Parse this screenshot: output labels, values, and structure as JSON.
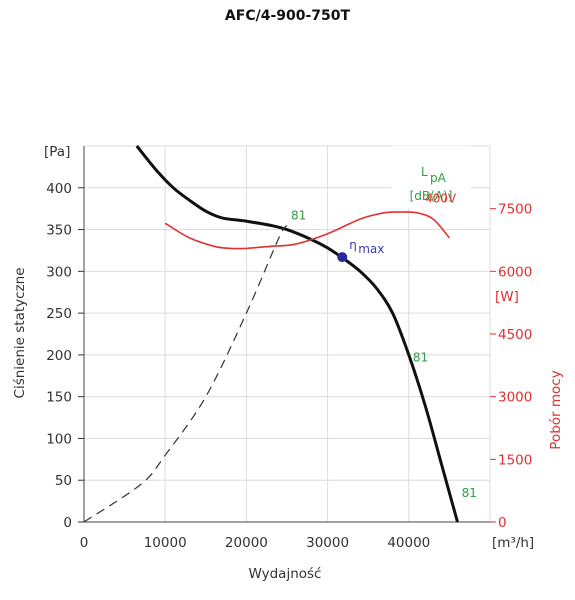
{
  "chart_data": {
    "type": "line",
    "title": "AFC/4-900-750T",
    "xlabel": "Wydajność",
    "xunit": "[m³/h]",
    "xlim": [
      0,
      50000
    ],
    "xticks": [
      "0",
      "10000",
      "20000",
      "30000",
      "40000"
    ],
    "ylabel": "Ciśnienie statyczne",
    "yunit": "[Pa]",
    "ylim": [
      0,
      450
    ],
    "yticks": [
      "0",
      "50",
      "100",
      "150",
      "200",
      "250",
      "300",
      "350",
      "400"
    ],
    "y2label": "Pobór mocy",
    "y2unit": "[W]",
    "y2ticks": [
      "0",
      "1500",
      "3000",
      "4500",
      "6000",
      "7500"
    ],
    "y2lim": [
      0,
      9000
    ],
    "grid": true,
    "legend_box": {
      "line1": "L",
      "sub": "pA",
      "line2": "[dB(A)]"
    },
    "series": [
      {
        "kind": "pressure",
        "color": "#111111",
        "x": [
          6500,
          9000,
          11000,
          13000,
          15000,
          17000,
          20000,
          23000,
          25000,
          28000,
          30000,
          32000,
          34000,
          36000,
          38000,
          40000,
          42000,
          44000,
          46000
        ],
        "y": [
          450,
          420,
          400,
          385,
          372,
          364,
          360,
          355,
          350,
          338,
          328,
          315,
          300,
          280,
          250,
          200,
          140,
          70,
          0
        ]
      },
      {
        "kind": "power",
        "name": "400V",
        "color": "#e03131",
        "x": [
          10000,
          13000,
          16000,
          18000,
          20000,
          23000,
          26000,
          30000,
          34000,
          37000,
          39000,
          41000,
          43000,
          45000
        ],
        "y": [
          7150,
          6800,
          6600,
          6550,
          6550,
          6600,
          6650,
          6900,
          7250,
          7400,
          7420,
          7400,
          7250,
          6800
        ]
      },
      {
        "kind": "system",
        "color": "#333333",
        "dashed": true,
        "x": [
          0,
          7000,
          10000,
          15000,
          20000,
          24000,
          25000
        ],
        "y": [
          0,
          45,
          80,
          150,
          250,
          340,
          355
        ]
      }
    ],
    "annotations": [
      {
        "text": "81",
        "x": 25500,
        "y": 362,
        "color": "#2f9e44"
      },
      {
        "text": "81",
        "x": 40500,
        "y": 192,
        "color": "#2f9e44"
      },
      {
        "text": "81",
        "x": 46500,
        "y": 30,
        "color": "#2f9e44"
      },
      {
        "text": "400V",
        "x": 42000,
        "y2": 7650,
        "color": "#e03131"
      }
    ],
    "eta_max": {
      "symbol": "η",
      "sub": "max",
      "x": 31800,
      "y": 317,
      "color": "#2a2a9e"
    }
  }
}
